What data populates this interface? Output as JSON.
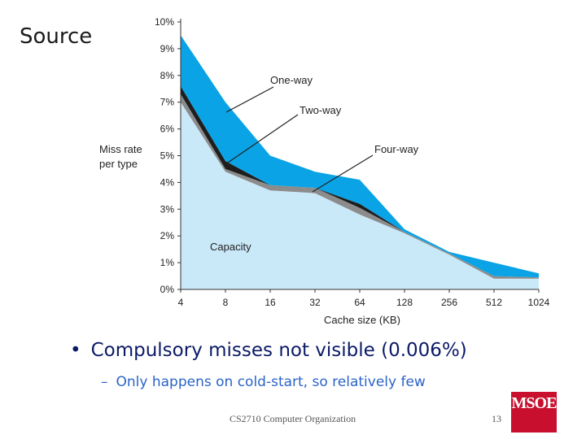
{
  "slide": {
    "heading": "Source",
    "bullet": "Compulsory misses not visible (0.006%)",
    "sub_bullet": "Only happens on cold-start, so relatively few",
    "footer": "CS2710 Computer Organization",
    "page_number": "13",
    "logo_text": "MSOE"
  },
  "chart_data": {
    "type": "area",
    "title": "",
    "xlabel": "Cache size (KB)",
    "ylabel": "Miss rate per type",
    "categories": [
      "4",
      "8",
      "16",
      "32",
      "64",
      "128",
      "256",
      "512",
      "1024"
    ],
    "ylim": [
      0,
      10
    ],
    "yticks": [
      "0%",
      "1%",
      "2%",
      "3%",
      "4%",
      "5%",
      "6%",
      "7%",
      "8%",
      "9%",
      "10%"
    ],
    "stacked": true,
    "series": [
      {
        "name": "Capacity",
        "color": "#c9e8f8",
        "values": [
          7.0,
          4.4,
          3.7,
          3.6,
          2.8,
          2.1,
          1.3,
          0.4,
          0.4
        ]
      },
      {
        "name": "Four-way",
        "color": "#8c8c8c",
        "values": [
          0.3,
          0.1,
          0.2,
          0.2,
          0.25,
          0.05,
          0.05,
          0.1,
          0.05
        ]
      },
      {
        "name": "Two-way",
        "color": "#1e1e1e",
        "values": [
          0.3,
          0.3,
          0.0,
          0.0,
          0.15,
          0.0,
          0.0,
          0.0,
          0.0
        ]
      },
      {
        "name": "One-way",
        "color": "#0aa3e6",
        "values": [
          1.9,
          2.2,
          1.1,
          0.6,
          0.9,
          0.1,
          0.05,
          0.5,
          0.15
        ]
      }
    ],
    "annotations": [
      "One-way",
      "Two-way",
      "Four-way",
      "Capacity"
    ]
  }
}
